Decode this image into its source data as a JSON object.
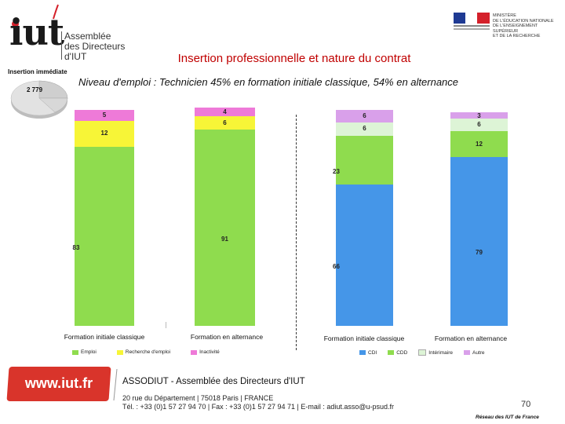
{
  "header": {
    "logo_text": "iut",
    "logo_subtitle_lines": [
      "Assemblée",
      "des Directeurs",
      "d'IUT"
    ],
    "ministry_lines": [
      "MINISTÈRE",
      "DE L'ÉDUCATION NATIONALE",
      "DE L'ENSEIGNEMENT SUPÉRIEUR",
      "ET DE LA RECHERCHE"
    ],
    "title": "Insertion professionnelle et nature du contrat",
    "subtitle": "Niveau d'emploi : Technicien 45% en formation initiale classique, 54% en alternance"
  },
  "insertion": {
    "label": "Insertion immédiate",
    "count": "2 779"
  },
  "chart_data": [
    {
      "type": "bar",
      "stacked": true,
      "categories": [
        "Formation initiale classique",
        "Formation en alternance"
      ],
      "series": [
        {
          "name": "Emploi",
          "values": [
            83,
            91
          ],
          "color": "#8fdc4e"
        },
        {
          "name": "Recherche d'emploi",
          "values": [
            12,
            6
          ],
          "color": "#f7f537"
        },
        {
          "name": "Inactivité",
          "values": [
            5,
            4
          ],
          "color": "#ee7ad8"
        }
      ],
      "ylim": [
        0,
        100
      ]
    },
    {
      "type": "bar",
      "stacked": true,
      "categories": [
        "Formation initiale classique",
        "Formation en alternance"
      ],
      "series": [
        {
          "name": "CDI",
          "values": [
            66,
            79
          ],
          "color": "#4596e8"
        },
        {
          "name": "CDD",
          "values": [
            23,
            12
          ],
          "color": "#8fdc4e"
        },
        {
          "name": "Intérimaire",
          "values": [
            6,
            6
          ],
          "color": "#ddf4d6"
        },
        {
          "name": "Autre",
          "values": [
            6,
            3
          ],
          "color": "#d9a0ea"
        }
      ],
      "ylim": [
        0,
        101
      ]
    }
  ],
  "footer": {
    "url": "www.iut.fr",
    "org": "ASSODIUT - Assemblée des Directeurs d'IUT",
    "address_line1": "20 rue du Département | 75018 Paris | FRANCE",
    "address_line2": "Tél. : +33 (0)1 57 27 94 70 | Fax : +33 (0)1 57 27 94 71 | E-mail : adiut.asso@u-psud.fr",
    "page_number": "70",
    "network": "Réseau des IUT de France"
  }
}
